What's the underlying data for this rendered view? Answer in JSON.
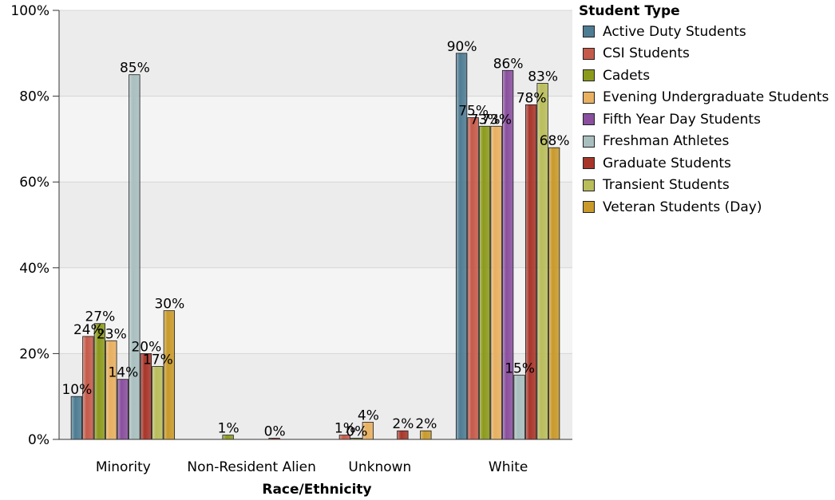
{
  "chart_data": {
    "type": "bar",
    "xlabel": "Race/Ethnicity",
    "legend_title": "Student Type",
    "legend_placement": "top-right",
    "categories": [
      "Minority",
      "Non-Resident Alien",
      "Unknown",
      "White"
    ],
    "ylim": [
      0,
      100
    ],
    "y_ticks": [
      "0%",
      "20%",
      "40%",
      "60%",
      "80%",
      "100%"
    ],
    "grid": true,
    "series": [
      {
        "name": "Active Duty Students",
        "color": "#4e7c93",
        "values": [
          10,
          null,
          null,
          90
        ],
        "labels": [
          "10%",
          "",
          "",
          "90%"
        ]
      },
      {
        "name": "CSI Students",
        "color": "#c65a4a",
        "values": [
          24,
          null,
          1,
          75
        ],
        "labels": [
          "24%",
          "",
          "1%",
          "75%"
        ]
      },
      {
        "name": "Cadets",
        "color": "#8c9a1c",
        "values": [
          27,
          1,
          0,
          73
        ],
        "labels": [
          "27%",
          "1%",
          "0%",
          "73%"
        ]
      },
      {
        "name": "Evening Undergraduate Students",
        "color": "#e8b060",
        "values": [
          23,
          null,
          4,
          73
        ],
        "labels": [
          "23%",
          "",
          "4%",
          "73%"
        ]
      },
      {
        "name": "Fifth Year Day Students",
        "color": "#8a4f9e",
        "values": [
          14,
          null,
          null,
          86
        ],
        "labels": [
          "14%",
          "",
          "",
          "86%"
        ]
      },
      {
        "name": "Freshman Athletes",
        "color": "#a9bfbf",
        "values": [
          85,
          null,
          null,
          15
        ],
        "labels": [
          "85%",
          "",
          "",
          "15%"
        ]
      },
      {
        "name": "Graduate Students",
        "color": "#a8352a",
        "values": [
          20,
          0,
          2,
          78
        ],
        "labels": [
          "20%",
          "0%",
          "2%",
          "78%"
        ]
      },
      {
        "name": "Transient Students",
        "color": "#b9bd5a",
        "values": [
          17,
          null,
          null,
          83
        ],
        "labels": [
          "17%",
          "",
          "",
          "83%"
        ]
      },
      {
        "name": "Veteran Students (Day)",
        "color": "#c99a2a",
        "values": [
          30,
          null,
          2,
          68
        ],
        "labels": [
          "30%",
          "",
          "2%",
          "68%"
        ]
      }
    ]
  }
}
